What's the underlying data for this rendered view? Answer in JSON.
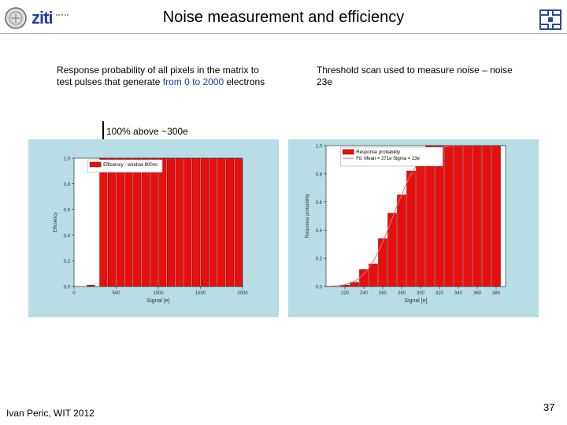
{
  "slide": {
    "title": "Noise measurement and efficiency",
    "left_caption_part1": "Response probability of all pixels in the matrix to test pulses that generate ",
    "left_caption_part2": "from 0 to 2000",
    "left_caption_part3": " electrons",
    "right_caption": "Threshold scan used to measure noise – noise  23e",
    "annotation": "100% above ~300e",
    "footer": "Ivan Peric, WIT 2012",
    "page_number": "37"
  },
  "logos": {
    "left_text": "ziti"
  },
  "chart_data": [
    {
      "type": "bar",
      "name": "efficiency",
      "legend": "Efficiency - window 800ns",
      "xlabel": "Signal [e]",
      "ylabel": "Efficiency",
      "xlim": [
        0,
        2000
      ],
      "ylim": [
        0,
        1.0
      ],
      "xticks": [
        "0",
        "500",
        "1000",
        "1500",
        "2000"
      ],
      "xtick_values": [
        0,
        500,
        1000,
        1500,
        2000
      ],
      "yticks": [
        "0.0",
        "0.2",
        "0.4",
        "0.6",
        "0.8",
        "1.0"
      ],
      "ytick_values": [
        0,
        0.2,
        0.4,
        0.6,
        0.8,
        1.0
      ],
      "bar_width": 100,
      "points": [
        {
          "x": 100,
          "y": 0.0
        },
        {
          "x": 200,
          "y": 0.01
        },
        {
          "x": 350,
          "y": 1.0
        },
        {
          "x": 450,
          "y": 1.0
        },
        {
          "x": 550,
          "y": 1.0
        },
        {
          "x": 650,
          "y": 1.0
        },
        {
          "x": 750,
          "y": 1.0
        },
        {
          "x": 850,
          "y": 1.0
        },
        {
          "x": 950,
          "y": 1.0
        },
        {
          "x": 1050,
          "y": 1.0
        },
        {
          "x": 1150,
          "y": 1.0
        },
        {
          "x": 1250,
          "y": 1.0
        },
        {
          "x": 1350,
          "y": 1.0
        },
        {
          "x": 1450,
          "y": 1.0
        },
        {
          "x": 1550,
          "y": 1.0
        },
        {
          "x": 1650,
          "y": 1.0
        },
        {
          "x": 1750,
          "y": 1.0
        },
        {
          "x": 1850,
          "y": 1.0
        },
        {
          "x": 1950,
          "y": 1.0
        }
      ]
    },
    {
      "type": "bar",
      "name": "threshold-scan",
      "legend": [
        "Response probability",
        "Fit: Mean = 271e Sigma = 23e"
      ],
      "xlabel": "Signal [e]",
      "ylabel": "Response probability",
      "xlim": [
        200,
        390
      ],
      "ylim": [
        0,
        1.0
      ],
      "xticks": [
        "220",
        "240",
        "260",
        "280",
        "300",
        "320",
        "340",
        "360",
        "380"
      ],
      "xtick_values": [
        220,
        240,
        260,
        280,
        300,
        320,
        340,
        360,
        380
      ],
      "yticks": [
        "0.0",
        "0.2",
        "0.4",
        "0.6",
        "0.8",
        "1.0"
      ],
      "ytick_values": [
        0,
        0.2,
        0.4,
        0.6,
        0.8,
        1.0
      ],
      "bar_width": 10,
      "points": [
        {
          "x": 220,
          "y": 0.01
        },
        {
          "x": 230,
          "y": 0.03
        },
        {
          "x": 240,
          "y": 0.12
        },
        {
          "x": 250,
          "y": 0.16
        },
        {
          "x": 260,
          "y": 0.34
        },
        {
          "x": 270,
          "y": 0.52
        },
        {
          "x": 280,
          "y": 0.65
        },
        {
          "x": 290,
          "y": 0.82
        },
        {
          "x": 300,
          "y": 0.86
        },
        {
          "x": 310,
          "y": 1.0
        },
        {
          "x": 320,
          "y": 1.0
        },
        {
          "x": 330,
          "y": 1.0
        },
        {
          "x": 340,
          "y": 1.0
        },
        {
          "x": 350,
          "y": 1.0
        },
        {
          "x": 360,
          "y": 1.0
        },
        {
          "x": 370,
          "y": 1.0
        },
        {
          "x": 380,
          "y": 1.0
        }
      ],
      "fit": {
        "mean": 271,
        "sigma": 23
      }
    }
  ],
  "colors": {
    "bar": "#e8100f",
    "bar_edge": "#7a0000",
    "panel": "#b8dde4",
    "fit_line": "#e87070"
  }
}
